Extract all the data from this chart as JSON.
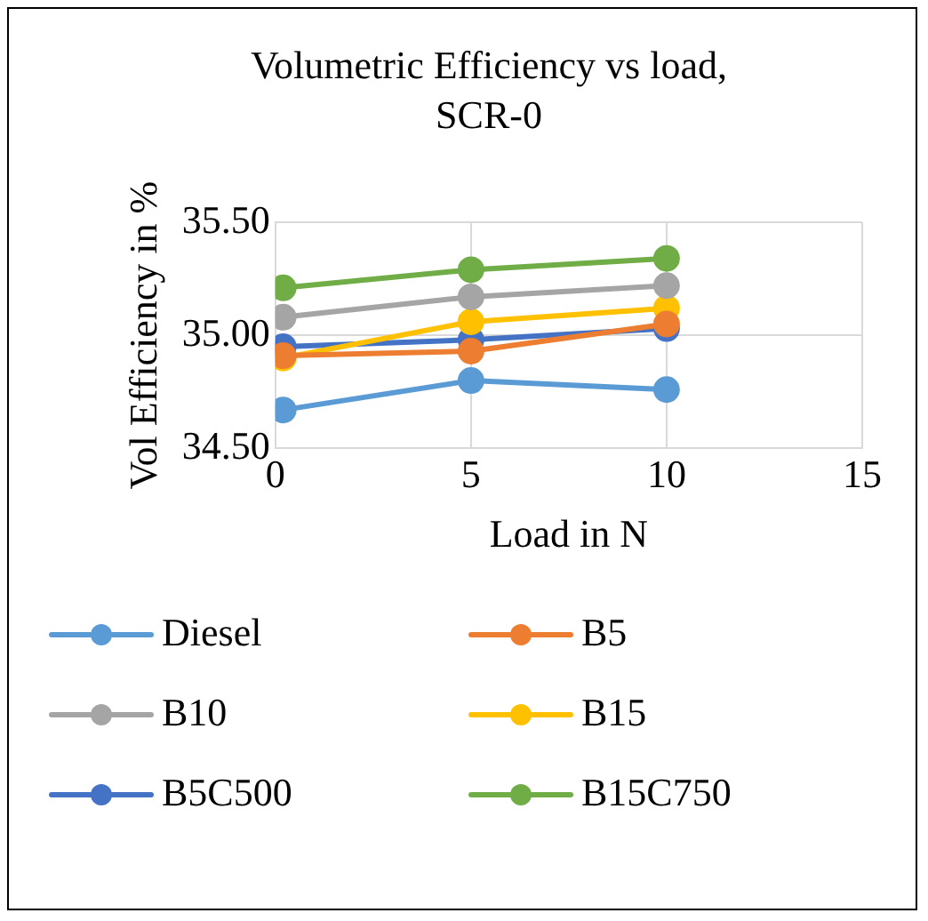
{
  "chart_data": {
    "type": "line",
    "title": "Volumetric Efficiency vs load, SCR-0",
    "xlabel": "Load in N",
    "ylabel": "Vol Efficiency in %",
    "x": [
      0.2,
      5,
      10
    ],
    "xlim": [
      0,
      15
    ],
    "xticks": [
      0,
      5,
      10,
      15
    ],
    "ylim": [
      34.5,
      35.5
    ],
    "yticks": [
      {
        "value": 34.5,
        "label": "34.50"
      },
      {
        "value": 35,
        "label": "35.00"
      },
      {
        "value": 35.5,
        "label": "35.50"
      }
    ],
    "series": [
      {
        "name": "Diesel",
        "color": "#5b9bd5",
        "values": [
          34.67,
          34.8,
          34.76
        ]
      },
      {
        "name": "B5",
        "color": "#ed7d31",
        "values": [
          34.91,
          34.93,
          35.05
        ]
      },
      {
        "name": "B10",
        "color": "#a5a5a5",
        "values": [
          35.08,
          35.17,
          35.22
        ]
      },
      {
        "name": "B15",
        "color": "#ffc000",
        "values": [
          34.9,
          35.06,
          35.12
        ]
      },
      {
        "name": "B5C500",
        "color": "#4472c4",
        "values": [
          34.95,
          34.98,
          35.03
        ]
      },
      {
        "name": "B15C750",
        "color": "#70ad47",
        "values": [
          35.21,
          35.29,
          35.34
        ]
      }
    ],
    "grid": true,
    "legend": "bottom",
    "marker": "circle",
    "line_style": "solid"
  }
}
